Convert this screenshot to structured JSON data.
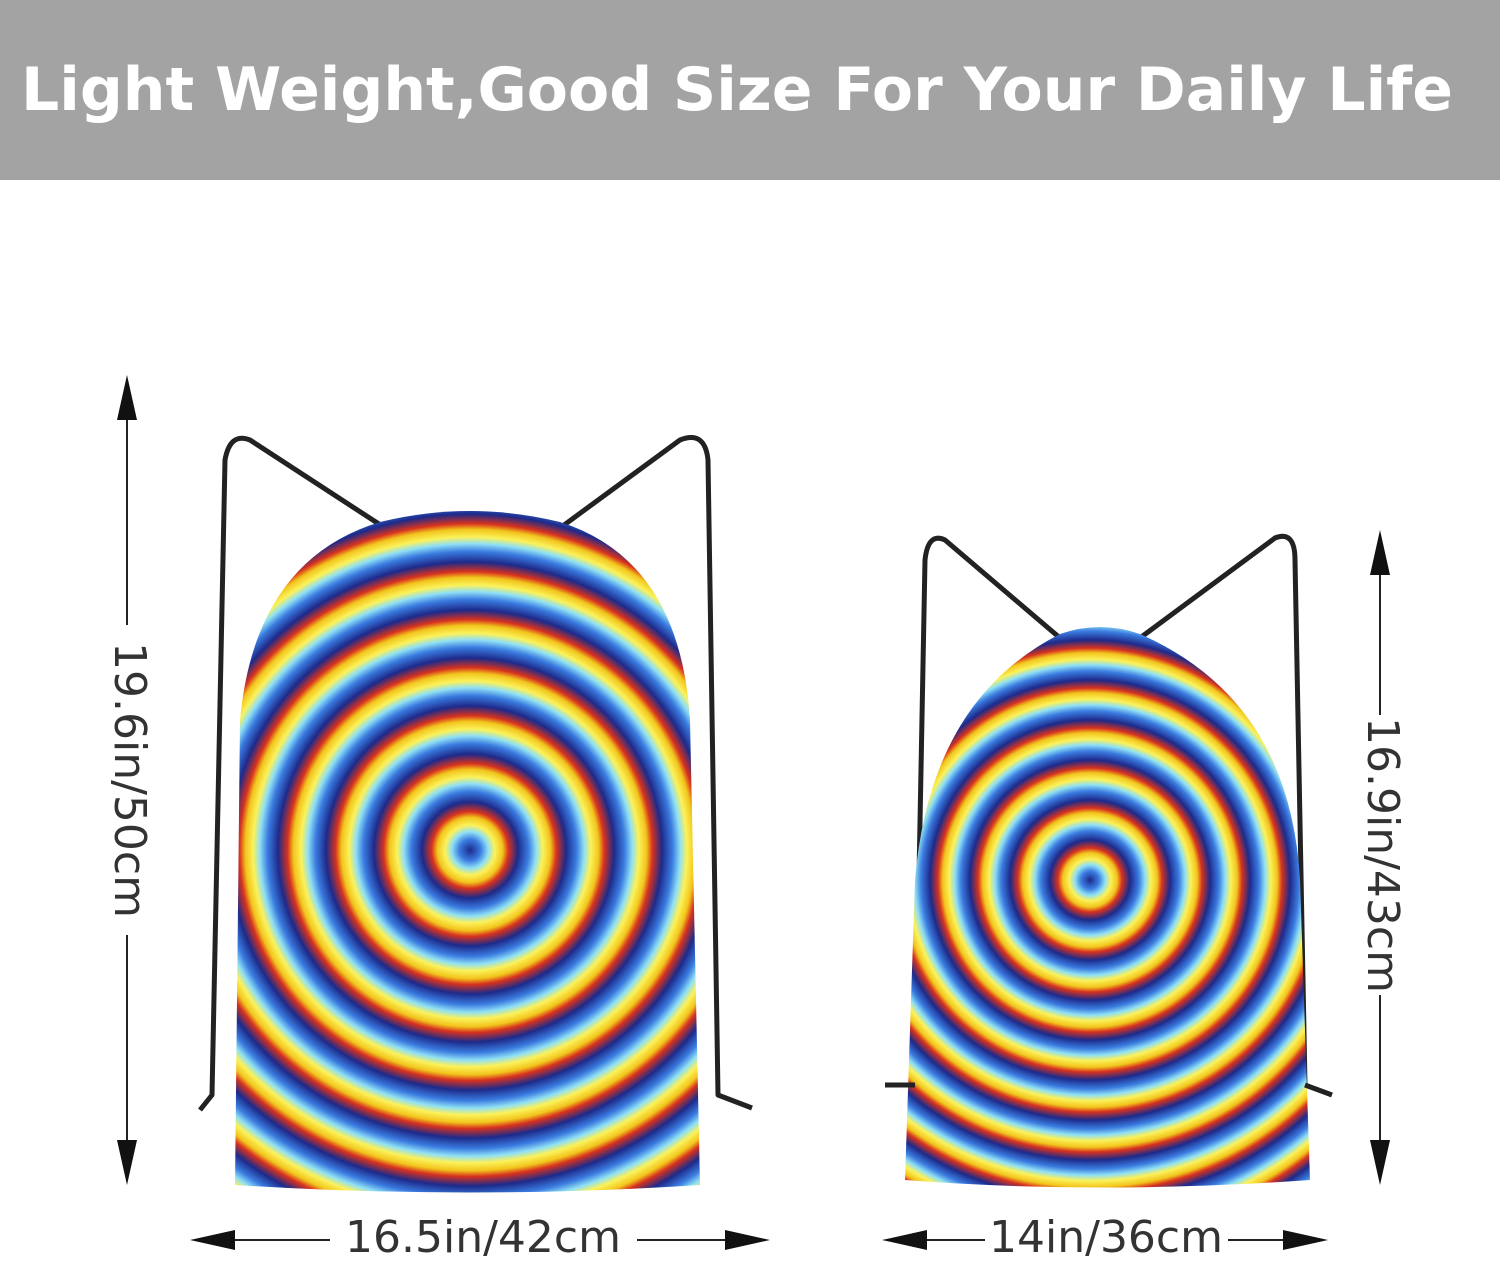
{
  "header": {
    "title": "Light Weight,Good Size For Your Daily Life"
  },
  "bags": [
    {
      "height": "19.6in/50cm",
      "width": "16.5in/42cm"
    },
    {
      "height": "16.9in/43cm",
      "width": "14in/36cm"
    }
  ]
}
